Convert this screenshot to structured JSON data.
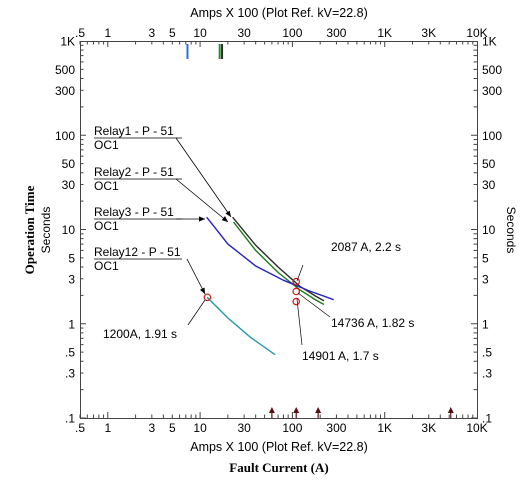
{
  "chart_data": {
    "type": "line",
    "scale": "log-log",
    "axis_title_top": "Amps  X  100 (Plot Ref. kV=22.8)",
    "axis_title_bottom": "Amps  X  100 (Plot Ref. kV=22.8)",
    "xlabel": "Fault Current (A)",
    "ylabel_outer": "Operation Time",
    "ylabel_inner": "Seconds",
    "ylabel_right": "Seconds",
    "xlim": [
      0.5,
      10000
    ],
    "ylim": [
      0.1,
      1000
    ],
    "x_ticks": [
      {
        "v": 0.5,
        "label": ".5"
      },
      {
        "v": 1,
        "label": "1"
      },
      {
        "v": 3,
        "label": "3"
      },
      {
        "v": 5,
        "label": "5"
      },
      {
        "v": 10,
        "label": "10"
      },
      {
        "v": 30,
        "label": "30"
      },
      {
        "v": 100,
        "label": "100"
      },
      {
        "v": 300,
        "label": "300"
      },
      {
        "v": 1000,
        "label": "1K"
      },
      {
        "v": 3000,
        "label": "3K"
      },
      {
        "v": 10000,
        "label": "10K"
      }
    ],
    "y_ticks": [
      {
        "v": 1000,
        "label": "1K"
      },
      {
        "v": 500,
        "label": "500"
      },
      {
        "v": 300,
        "label": "300"
      },
      {
        "v": 100,
        "label": "100"
      },
      {
        "v": 50,
        "label": "50"
      },
      {
        "v": 30,
        "label": "30"
      },
      {
        "v": 10,
        "label": "10"
      },
      {
        "v": 5,
        "label": "5"
      },
      {
        "v": 3,
        "label": "3"
      },
      {
        "v": 1,
        "label": "1"
      },
      {
        "v": 0.5,
        "label": ".5"
      },
      {
        "v": 0.3,
        "label": ".3"
      },
      {
        "v": 0.1,
        "label": ".1"
      }
    ],
    "series": [
      {
        "key": "relay1",
        "color": "#2b2b2b",
        "points": [
          [
            22.5,
            13.5
          ],
          [
            40,
            6.8
          ],
          [
            70,
            4.0
          ],
          [
            120,
            2.5
          ],
          [
            180,
            1.95
          ],
          [
            220,
            1.75
          ]
        ]
      },
      {
        "key": "relay2",
        "color": "#1a7a1a",
        "points": [
          [
            23,
            12.0
          ],
          [
            40,
            6.0
          ],
          [
            70,
            3.5
          ],
          [
            120,
            2.3
          ],
          [
            180,
            1.78
          ],
          [
            220,
            1.6
          ]
        ]
      },
      {
        "key": "relay3",
        "color": "#2323c8",
        "points": [
          [
            11.8,
            13.5
          ],
          [
            20,
            7.0
          ],
          [
            40,
            4.1
          ],
          [
            80,
            2.9
          ],
          [
            150,
            2.25
          ],
          [
            280,
            1.8
          ]
        ]
      },
      {
        "key": "relay12",
        "color": "#1f9aa8",
        "points": [
          [
            11.9,
            1.91
          ],
          [
            20,
            1.15
          ],
          [
            35,
            0.72
          ],
          [
            65,
            0.47
          ]
        ]
      }
    ],
    "markers": [
      {
        "x": 12.0,
        "y": 1.91
      },
      {
        "x": 110,
        "y": 2.8
      },
      {
        "x": 110,
        "y": 2.2
      },
      {
        "x": 110,
        "y": 1.72
      }
    ],
    "relay_labels": [
      {
        "line1": "Relay1 - P - 51",
        "line2": "OC1"
      },
      {
        "line1": "Relay2 - P - 51",
        "line2": "OC1"
      },
      {
        "line1": "Relay3 - P - 51",
        "line2": "OC1"
      },
      {
        "line1": "Relay12 - P - 51",
        "line2": "OC1"
      }
    ],
    "annotations": [
      "2087 A, 2.2 s",
      "14736 A, 1.82 s",
      "14901 A, 1.7 s",
      "1200A, 1.91 s"
    ],
    "top_marks": [
      {
        "x": 7.3,
        "color": "#2e6fd6"
      },
      {
        "x": 16.3,
        "color": "#2a8a2a"
      },
      {
        "x": 17.3,
        "color": "#2b2b2b"
      }
    ],
    "bottom_arrows": [
      60,
      110,
      190,
      5200
    ]
  }
}
